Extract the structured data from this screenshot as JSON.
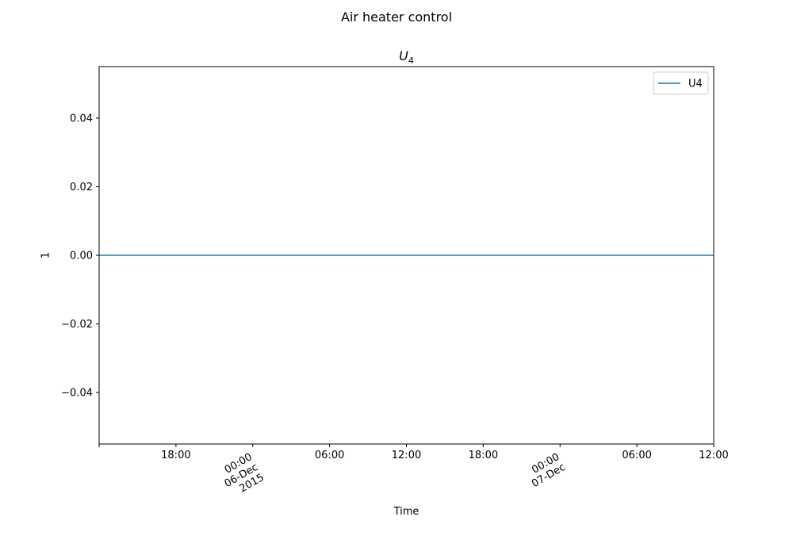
{
  "figure": {
    "suptitle": "Air heater control"
  },
  "chart_data": {
    "type": "line",
    "title_base": "U",
    "title_sub": "4",
    "xlabel": "Time",
    "ylabel": "1",
    "ylim": [
      -0.055,
      0.055
    ],
    "xlim": [
      "2015-12-05 12:00",
      "2015-12-07 12:00"
    ],
    "yticks": [
      {
        "value": 0.04,
        "label": "0.04"
      },
      {
        "value": 0.02,
        "label": "0.02"
      },
      {
        "value": 0.0,
        "label": "0.00"
      },
      {
        "value": -0.02,
        "label": "−0.02"
      },
      {
        "value": -0.04,
        "label": "−0.04"
      }
    ],
    "xticks": [
      {
        "value": "2015-12-05 12:00",
        "lines": []
      },
      {
        "value": "2015-12-05 18:00",
        "lines": [
          "18:00"
        ],
        "rotated": false
      },
      {
        "value": "2015-12-06 00:00",
        "lines": [
          "00:00",
          "06-Dec",
          "2015"
        ],
        "rotated": true
      },
      {
        "value": "2015-12-06 06:00",
        "lines": [
          "06:00"
        ],
        "rotated": false
      },
      {
        "value": "2015-12-06 12:00",
        "lines": [
          "12:00"
        ],
        "rotated": false
      },
      {
        "value": "2015-12-06 18:00",
        "lines": [
          "18:00"
        ],
        "rotated": false
      },
      {
        "value": "2015-12-07 00:00",
        "lines": [
          "00:00",
          "07-Dec"
        ],
        "rotated": true
      },
      {
        "value": "2015-12-07 06:00",
        "lines": [
          "06:00"
        ],
        "rotated": false
      },
      {
        "value": "2015-12-07 12:00",
        "lines": [
          "12:00"
        ],
        "rotated": false
      }
    ],
    "series": [
      {
        "name": "U4",
        "color": "#1f77b4",
        "points": [
          {
            "x": "2015-12-05 12:00",
            "y": 0.0
          },
          {
            "x": "2015-12-07 12:00",
            "y": 0.0
          }
        ]
      }
    ],
    "legend": {
      "placement": "top-right",
      "entries": [
        "U4"
      ]
    },
    "grid": false
  }
}
